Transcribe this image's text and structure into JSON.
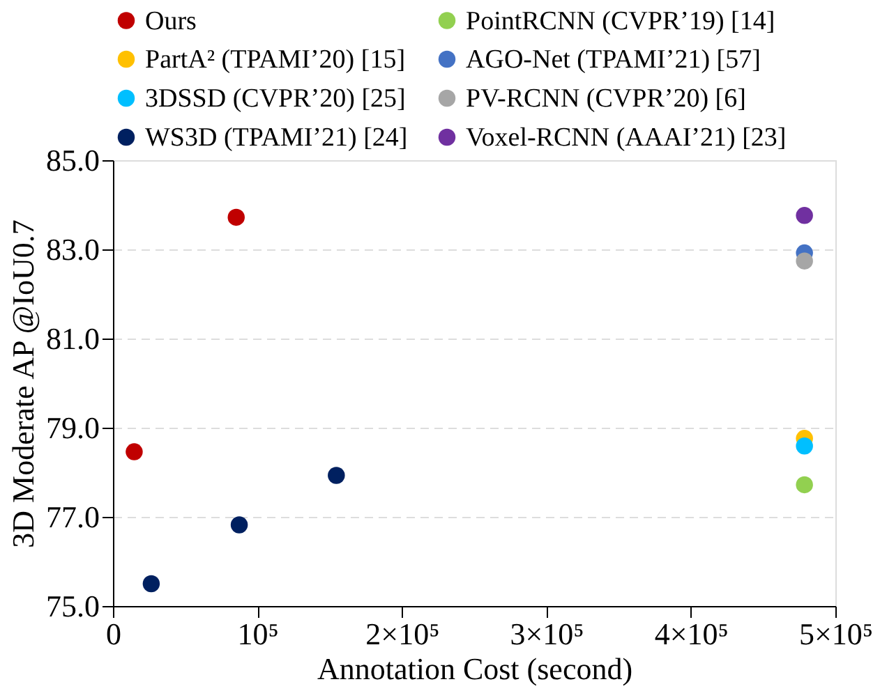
{
  "chart_data": {
    "type": "scatter",
    "xlabel": "Annotation Cost (second)",
    "ylabel": "3D Moderate AP @IoU0.7",
    "xlim": [
      0,
      500000
    ],
    "ylim": [
      75,
      85
    ],
    "xticks": [
      0,
      {
        "value": 100000,
        "label": "10⁵"
      },
      {
        "value": 200000,
        "label": "2×10⁵"
      },
      {
        "value": 300000,
        "label": "3×10⁵"
      },
      {
        "value": 400000,
        "label": "4×10⁵"
      },
      {
        "value": 500000,
        "label": "5×10⁵"
      }
    ],
    "yticks": [
      {
        "value": 75,
        "label": "75.0"
      },
      {
        "value": 77,
        "label": "77.0"
      },
      {
        "value": 79,
        "label": "79.0"
      },
      {
        "value": 81,
        "label": "81.0"
      },
      {
        "value": 83,
        "label": "83.0"
      },
      {
        "value": 85,
        "label": "85.0"
      }
    ],
    "grid": "y",
    "legend": "top",
    "marker": "circle",
    "series": [
      {
        "name": "Ours",
        "color": "#c00000",
        "x": [
          14700,
          85300
        ],
        "values": [
          78.46,
          83.72
        ]
      },
      {
        "name": "PointRCNN (CVPR’19) [14]",
        "color": "#92d050",
        "x": [
          478600
        ],
        "values": [
          77.72
        ]
      },
      {
        "name": "PartA² (TPAMI’20) [15]",
        "color": "#ffc000",
        "x": [
          478600
        ],
        "values": [
          78.76
        ]
      },
      {
        "name": "AGO-Net (TPAMI’21) [57]",
        "color": "#4472c4",
        "x": [
          478600
        ],
        "values": [
          82.92
        ]
      },
      {
        "name": "3DSSD (CVPR’20) [25]",
        "color": "#00bfff",
        "x": [
          478600
        ],
        "values": [
          78.59
        ]
      },
      {
        "name": "PV-RCNN (CVPR’20) [6]",
        "color": "#a6a6a6",
        "x": [
          478600
        ],
        "values": [
          82.74
        ]
      },
      {
        "name": "WS3D (TPAMI’21) [24]",
        "color": "#002060",
        "x": [
          26500,
          87400,
          154600
        ],
        "values": [
          75.5,
          76.82,
          77.93
        ]
      },
      {
        "name": "Voxel-RCNN (AAAI’21) [23]",
        "color": "#7030a0",
        "x": [
          478600
        ],
        "values": [
          83.76
        ]
      }
    ]
  }
}
